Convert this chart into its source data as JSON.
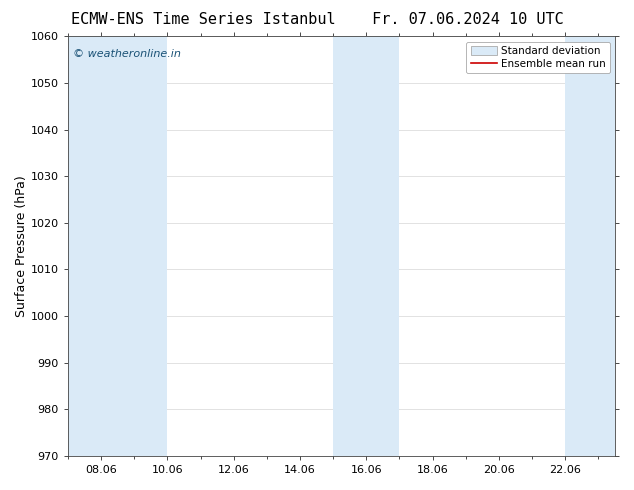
{
  "title_left": "ECMW-ENS Time Series Istanbul",
  "title_right": "Fr. 07.06.2024 10 UTC",
  "ylabel": "Surface Pressure (hPa)",
  "ylim": [
    970,
    1060
  ],
  "yticks": [
    970,
    980,
    990,
    1000,
    1010,
    1020,
    1030,
    1040,
    1050,
    1060
  ],
  "xlim": [
    7.0,
    23.5
  ],
  "xtick_positions": [
    8,
    10,
    12,
    14,
    16,
    18,
    20,
    22
  ],
  "xtick_labels": [
    "08.06",
    "10.06",
    "12.06",
    "14.06",
    "16.06",
    "18.06",
    "20.06",
    "22.06"
  ],
  "shaded_bands": [
    {
      "x_start": 7.0,
      "x_end": 10.0,
      "color": "#daeaf7"
    },
    {
      "x_start": 15.0,
      "x_end": 17.0,
      "color": "#daeaf7"
    },
    {
      "x_start": 22.0,
      "x_end": 23.5,
      "color": "#daeaf7"
    }
  ],
  "watermark_text": "© weatheronline.in",
  "watermark_color": "#1a5276",
  "watermark_fontsize": 8,
  "legend_std_label": "Standard deviation",
  "legend_ens_label": "Ensemble mean run",
  "legend_std_facecolor": "#daeaf7",
  "legend_std_edgecolor": "#aaaaaa",
  "legend_ens_color": "#cc0000",
  "bg_color": "#ffffff",
  "grid_color": "#cccccc",
  "title_fontsize": 11,
  "tick_fontsize": 8,
  "ylabel_fontsize": 9,
  "legend_fontsize": 7.5
}
